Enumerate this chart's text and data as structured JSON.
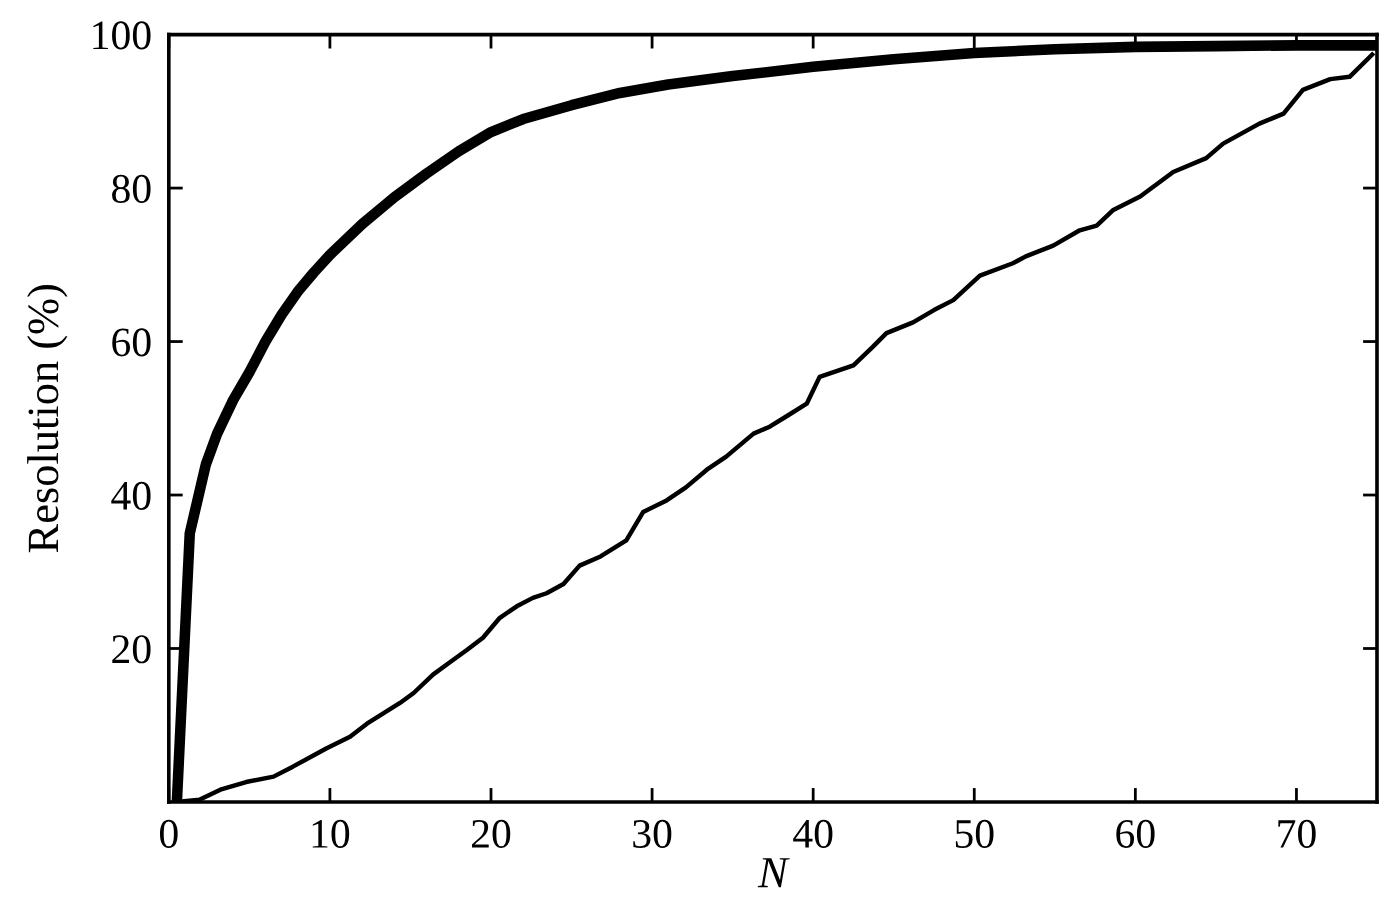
{
  "chart_data": {
    "type": "line",
    "xlabel": "N",
    "ylabel": "Resolution (%)",
    "xlim": [
      0,
      75
    ],
    "ylim": [
      0,
      100
    ],
    "xticks": [
      0,
      10,
      20,
      30,
      40,
      50,
      60,
      70
    ],
    "yticks": [
      20,
      40,
      60,
      80,
      100
    ],
    "grid": false,
    "marker": "none",
    "line_style": "solid",
    "series": [
      {
        "color": "#000000",
        "x": [
          0.5,
          1.3,
          2.3,
          3,
          4,
          5,
          6,
          7,
          8,
          9,
          10,
          12,
          14,
          16,
          18,
          20,
          22,
          25,
          28,
          31,
          35,
          40,
          45,
          50,
          55,
          60,
          65,
          70,
          75
        ],
        "values": [
          0,
          35,
          44,
          48,
          52.4,
          56,
          60,
          63.5,
          66.5,
          69,
          71.3,
          75.3,
          78.8,
          81.9,
          84.8,
          87.3,
          89,
          90.8,
          92.4,
          93.5,
          94.6,
          95.8,
          96.8,
          97.6,
          98.1,
          98.4,
          98.5,
          98.6,
          98.6
        ]
      },
      {
        "color": "#000000",
        "x": [
          0.5,
          1.9,
          3.2,
          4.8,
          6.5,
          7.7,
          9.8,
          11.25,
          12.3,
          14.35,
          15.2,
          16.4,
          17.45,
          18.5,
          19.5,
          20.55,
          21.6,
          22.6,
          23.45,
          24.5,
          25.5,
          26.8,
          28.4,
          29.45,
          30.9,
          32.1,
          33.4,
          34.6,
          36.3,
          37.3,
          38.3,
          39.6,
          40.4,
          42.5,
          43.7,
          44.55,
          46.2,
          47.5,
          48.7,
          50.35,
          52.4,
          53.2,
          54.9,
          56.55,
          57.6,
          58.6,
          60.3,
          62.35,
          64.4,
          65.45,
          67.7,
          69.2,
          70.4,
          72.1,
          73.3,
          74.8
        ],
        "values": [
          0,
          0.3,
          1.6,
          2.6,
          3.3,
          4.6,
          7.0,
          8.5,
          10.2,
          12.9,
          14.2,
          16.6,
          18.2,
          19.8,
          21.4,
          24.0,
          25.5,
          26.6,
          27.2,
          28.4,
          30.8,
          32.0,
          34.1,
          37.8,
          39.3,
          41.0,
          43.3,
          45.0,
          48.0,
          48.9,
          50.2,
          51.9,
          55.4,
          56.9,
          59.3,
          61.1,
          62.5,
          64.1,
          65.4,
          68.6,
          70.2,
          71.1,
          72.5,
          74.5,
          75.1,
          77.1,
          78.9,
          82.1,
          83.9,
          85.8,
          88.4,
          89.7,
          92.8,
          94.2,
          94.5,
          97.6
        ]
      }
    ]
  }
}
